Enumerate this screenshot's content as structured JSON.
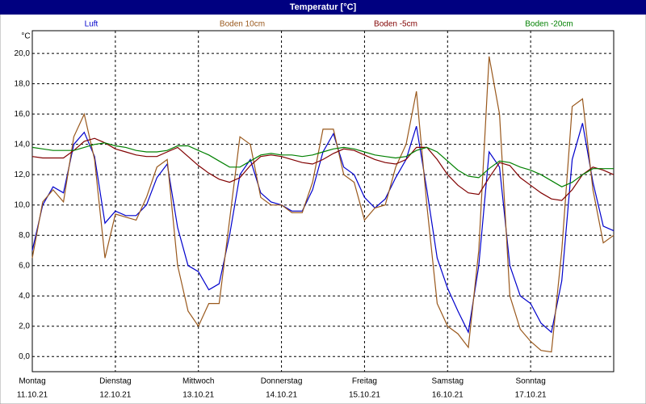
{
  "chart_data": {
    "type": "line",
    "title": "Temperatur [°C]",
    "y_unit": "°C",
    "x": [
      0,
      3,
      6,
      9,
      12,
      15,
      18,
      21,
      24,
      27,
      30,
      33,
      36,
      39,
      42,
      45,
      48,
      51,
      54,
      57,
      60,
      63,
      66,
      69,
      72,
      75,
      78,
      81,
      84,
      87,
      90,
      93,
      96,
      99,
      102,
      105,
      108,
      111,
      114,
      117,
      120,
      123,
      126,
      129,
      132,
      135,
      138,
      141,
      144,
      147,
      150,
      153,
      156,
      159,
      162,
      165,
      168
    ],
    "xlim": [
      0,
      168
    ],
    "xticks": [
      {
        "value": 0,
        "label": "Montag",
        "date": "11.10.21"
      },
      {
        "value": 24,
        "label": "Dienstag",
        "date": "12.10.21"
      },
      {
        "value": 48,
        "label": "Mittwoch",
        "date": "13.10.21"
      },
      {
        "value": 72,
        "label": "Donnerstag",
        "date": "14.10.21"
      },
      {
        "value": 96,
        "label": "Freitag",
        "date": "15.10.21"
      },
      {
        "value": 120,
        "label": "Samstag",
        "date": "16.10.21"
      },
      {
        "value": 144,
        "label": "Sonntag",
        "date": "17.10.21"
      }
    ],
    "ylim": [
      -1,
      21.5
    ],
    "yticks": [
      {
        "value": 0,
        "label": "0,0"
      },
      {
        "value": 2,
        "label": "2,0"
      },
      {
        "value": 4,
        "label": "4,0"
      },
      {
        "value": 6,
        "label": "6,0"
      },
      {
        "value": 8,
        "label": "8,0"
      },
      {
        "value": 10,
        "label": "10,0"
      },
      {
        "value": 12,
        "label": "12,0"
      },
      {
        "value": 14,
        "label": "14,0"
      },
      {
        "value": 16,
        "label": "16,0"
      },
      {
        "value": 18,
        "label": "18,0"
      },
      {
        "value": 20,
        "label": "20,0"
      }
    ],
    "grid": true,
    "series": [
      {
        "name": "Luft",
        "color": "#0000cc",
        "values": [
          7.0,
          10.0,
          11.2,
          10.8,
          14.0,
          14.8,
          13.2,
          8.8,
          9.6,
          9.3,
          9.3,
          10.0,
          11.8,
          12.7,
          8.5,
          6.0,
          5.6,
          4.4,
          4.8,
          8.0,
          12.0,
          13.0,
          10.8,
          10.2,
          10.0,
          9.6,
          9.6,
          11.0,
          13.5,
          14.7,
          12.5,
          12.0,
          10.5,
          9.8,
          10.4,
          11.8,
          13.0,
          15.2,
          11.0,
          6.5,
          4.5,
          3.0,
          1.6,
          6.0,
          13.5,
          12.5,
          6.0,
          4.0,
          3.5,
          2.2,
          1.6,
          5.0,
          13.0,
          15.4,
          11.5,
          8.6,
          8.3
        ]
      },
      {
        "name": "Boden 10cm",
        "color": "#99581c",
        "values": [
          6.5,
          10.2,
          11.0,
          10.2,
          14.5,
          16.0,
          13.0,
          6.5,
          9.4,
          9.2,
          9.0,
          10.5,
          12.5,
          13.0,
          6.0,
          3.0,
          2.0,
          3.5,
          3.5,
          9.0,
          14.5,
          14.0,
          10.5,
          10.0,
          10.0,
          9.5,
          9.5,
          11.5,
          15.0,
          15.0,
          12.0,
          11.5,
          9.0,
          9.8,
          10.0,
          12.5,
          14.0,
          17.5,
          10.0,
          3.5,
          2.0,
          1.5,
          0.6,
          7.0,
          19.8,
          16.0,
          4.0,
          1.8,
          1.0,
          0.4,
          0.3,
          7.0,
          16.5,
          17.0,
          11.0,
          7.5,
          8.0
        ]
      },
      {
        "name": "Boden -5cm",
        "color": "#800000",
        "values": [
          13.2,
          13.1,
          13.1,
          13.1,
          13.6,
          14.2,
          14.4,
          14.1,
          13.7,
          13.5,
          13.3,
          13.2,
          13.2,
          13.5,
          13.8,
          13.2,
          12.6,
          12.1,
          11.7,
          11.5,
          11.8,
          12.6,
          13.2,
          13.3,
          13.2,
          13.0,
          12.8,
          12.7,
          13.0,
          13.4,
          13.7,
          13.6,
          13.3,
          13.0,
          12.8,
          12.7,
          13.0,
          13.8,
          13.8,
          13.0,
          12.0,
          11.3,
          10.8,
          10.7,
          11.8,
          12.8,
          12.6,
          11.8,
          11.3,
          10.8,
          10.4,
          10.3,
          11.0,
          12.0,
          12.5,
          12.3,
          12.0
        ]
      },
      {
        "name": "Boden -20cm",
        "color": "#008000",
        "values": [
          13.8,
          13.7,
          13.6,
          13.6,
          13.6,
          13.8,
          14.0,
          14.1,
          13.9,
          13.8,
          13.6,
          13.5,
          13.5,
          13.6,
          13.9,
          13.9,
          13.6,
          13.3,
          12.9,
          12.5,
          12.5,
          12.9,
          13.3,
          13.4,
          13.3,
          13.3,
          13.2,
          13.3,
          13.5,
          13.7,
          13.8,
          13.7,
          13.5,
          13.3,
          13.2,
          13.1,
          13.2,
          13.6,
          13.8,
          13.5,
          12.9,
          12.3,
          11.9,
          11.8,
          12.4,
          12.9,
          12.8,
          12.5,
          12.3,
          12.0,
          11.6,
          11.2,
          11.5,
          12.0,
          12.4,
          12.4,
          12.4
        ]
      }
    ]
  }
}
